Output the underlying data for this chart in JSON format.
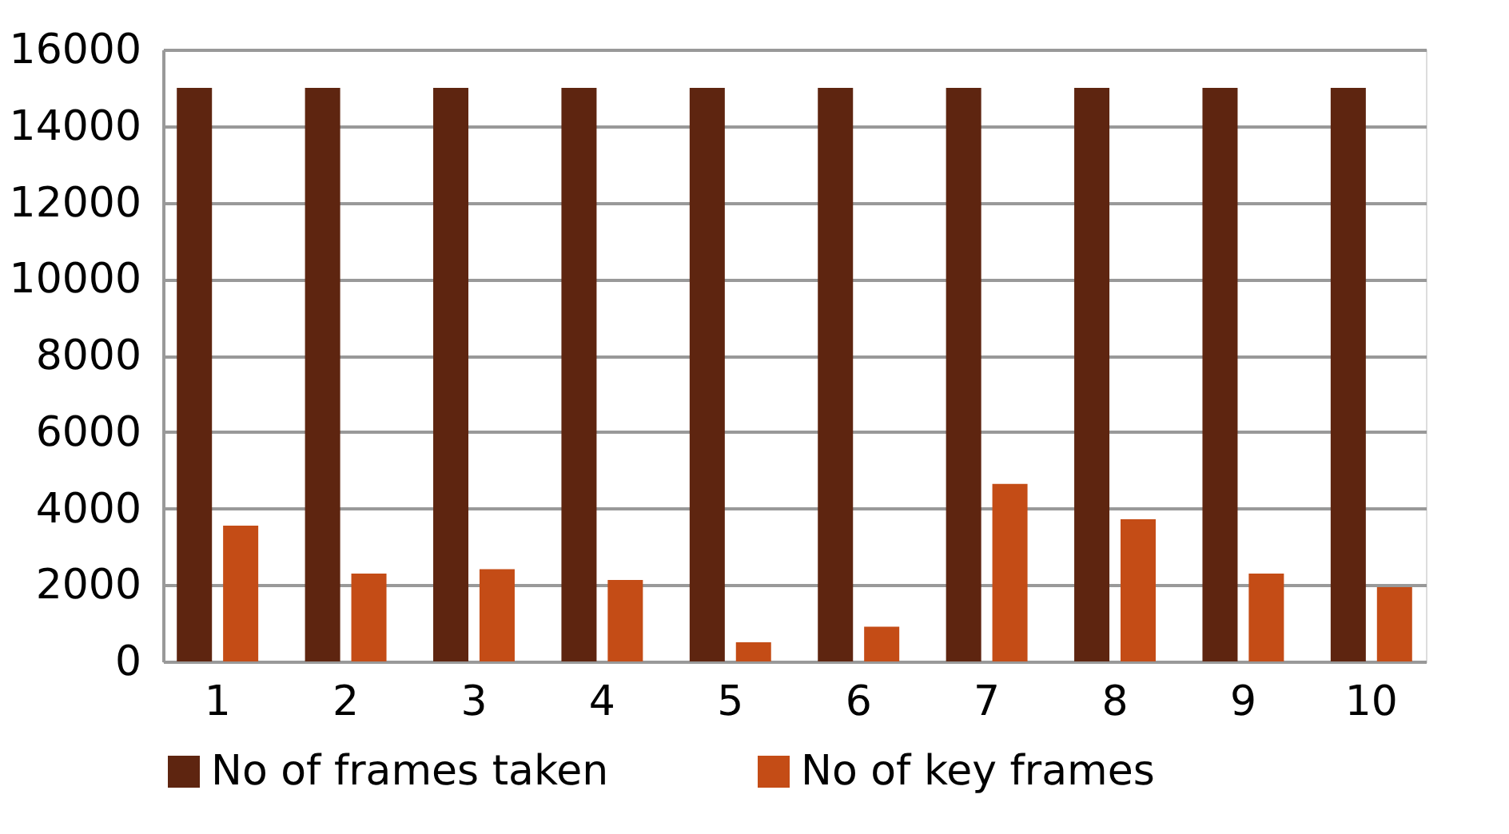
{
  "chart_data": {
    "type": "bar",
    "categories": [
      "1",
      "2",
      "3",
      "4",
      "5",
      "6",
      "7",
      "8",
      "9",
      "10"
    ],
    "series": [
      {
        "name": "No of frames taken",
        "color": "#5e2510",
        "values": [
          15000,
          15000,
          15000,
          15000,
          15000,
          15000,
          15000,
          15000,
          15000,
          15000
        ]
      },
      {
        "name": "No of key frames",
        "color": "#c44c16",
        "values": [
          3550,
          2300,
          2410,
          2130,
          500,
          910,
          4640,
          3720,
          2300,
          1940
        ]
      }
    ],
    "ylim": [
      0,
      16000
    ],
    "yticks": [
      0,
      2000,
      4000,
      6000,
      8000,
      10000,
      12000,
      14000,
      16000
    ],
    "grid": "y",
    "legend": "bottom"
  }
}
